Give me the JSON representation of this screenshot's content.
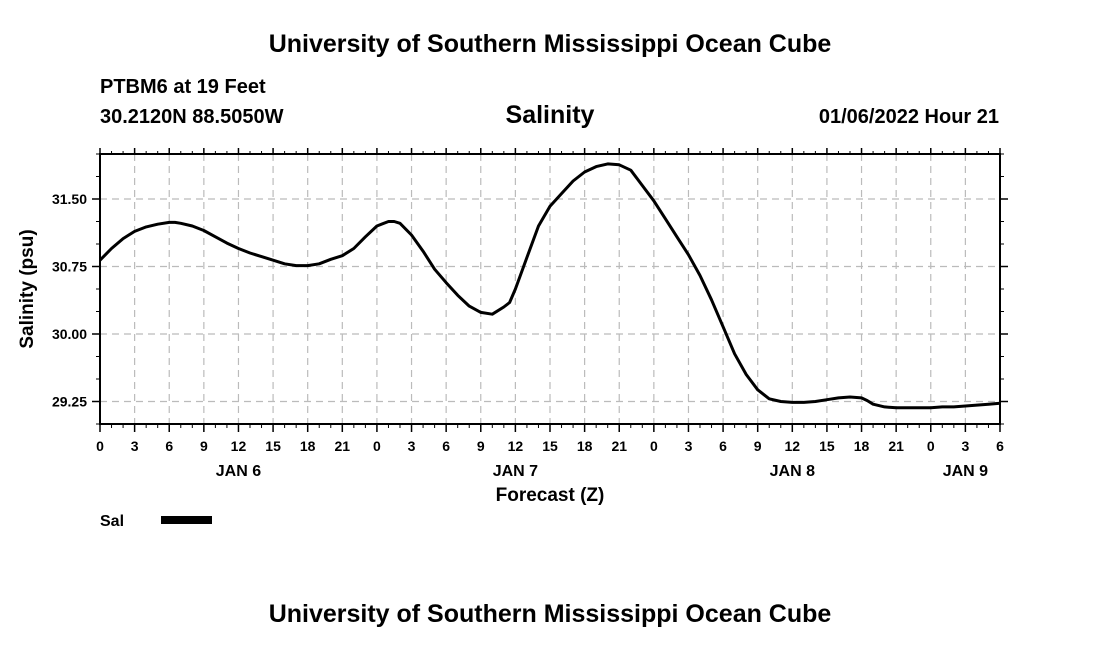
{
  "page": {
    "title_top": "University of Southern Mississippi Ocean Cube",
    "title_bottom": "University of Southern Mississippi Ocean Cube",
    "station": "PTBM6 at 19 Feet",
    "coords": "30.2120N  88.5050W",
    "variable": "Salinity",
    "timestamp": "01/06/2022 Hour 21"
  },
  "chart_data": {
    "type": "line",
    "ylabel": "Salinity (psu)",
    "xlabel": "Forecast (Z)",
    "ylim": [
      29.0,
      32.0
    ],
    "yticks": [
      29.25,
      30.0,
      30.75,
      31.5
    ],
    "ytick_labels": [
      "29.25",
      "30.00",
      "30.75",
      "31.50"
    ],
    "xlim": [
      0,
      78
    ],
    "xtick_hours": [
      0,
      3,
      6,
      9,
      12,
      15,
      18,
      21,
      24,
      27,
      30,
      33,
      36,
      39,
      42,
      45,
      48,
      51,
      54,
      57,
      60,
      63,
      66,
      69,
      72,
      75,
      78
    ],
    "xtick_labels": [
      "0",
      "3",
      "6",
      "9",
      "12",
      "15",
      "18",
      "21",
      "0",
      "3",
      "6",
      "9",
      "12",
      "15",
      "18",
      "21",
      "0",
      "3",
      "6",
      "9",
      "12",
      "15",
      "18",
      "21",
      "0",
      "3",
      "6"
    ],
    "date_labels": [
      {
        "label": "JAN 6",
        "hour": 12
      },
      {
        "label": "JAN 7",
        "hour": 36
      },
      {
        "label": "JAN 8",
        "hour": 60
      },
      {
        "label": "JAN 9",
        "hour": 75
      }
    ],
    "grid": true,
    "legend": {
      "position": "bottom-left",
      "entries": [
        "Sal"
      ]
    },
    "series": [
      {
        "name": "Sal",
        "color": "#000000",
        "x": [
          0,
          1,
          2,
          3,
          4,
          5,
          6,
          6.5,
          7,
          8,
          9,
          10,
          11,
          12,
          13,
          14,
          15,
          16,
          17,
          18,
          19,
          20,
          21,
          22,
          23,
          24,
          25,
          25.5,
          26,
          27,
          28,
          29,
          30,
          31,
          32,
          33,
          34,
          35,
          35.5,
          36,
          37,
          38,
          39,
          40,
          41,
          42,
          43,
          44,
          45,
          46,
          47,
          48,
          49,
          50,
          51,
          52,
          53,
          54,
          55,
          56,
          57,
          58,
          59,
          60,
          61,
          62,
          63,
          64,
          65,
          66,
          66.5,
          67,
          68,
          69,
          70,
          71,
          72,
          73,
          74,
          75,
          76,
          77,
          78
        ],
        "y": [
          30.82,
          30.95,
          31.06,
          31.14,
          31.19,
          31.22,
          31.24,
          31.24,
          31.23,
          31.2,
          31.15,
          31.08,
          31.01,
          30.95,
          30.9,
          30.86,
          30.82,
          30.78,
          30.76,
          30.76,
          30.78,
          30.83,
          30.87,
          30.95,
          31.08,
          31.2,
          31.25,
          31.25,
          31.23,
          31.1,
          30.92,
          30.72,
          30.57,
          30.43,
          30.31,
          30.24,
          30.22,
          30.3,
          30.35,
          30.5,
          30.85,
          31.2,
          31.42,
          31.56,
          31.7,
          31.8,
          31.86,
          31.89,
          31.88,
          31.82,
          31.65,
          31.48,
          31.28,
          31.08,
          30.88,
          30.65,
          30.38,
          30.08,
          29.78,
          29.55,
          29.38,
          29.28,
          29.25,
          29.24,
          29.24,
          29.25,
          29.27,
          29.29,
          29.3,
          29.29,
          29.26,
          29.22,
          29.19,
          29.18,
          29.18,
          29.18,
          29.18,
          29.19,
          29.19,
          29.2,
          29.21,
          29.22,
          29.23
        ]
      }
    ]
  }
}
